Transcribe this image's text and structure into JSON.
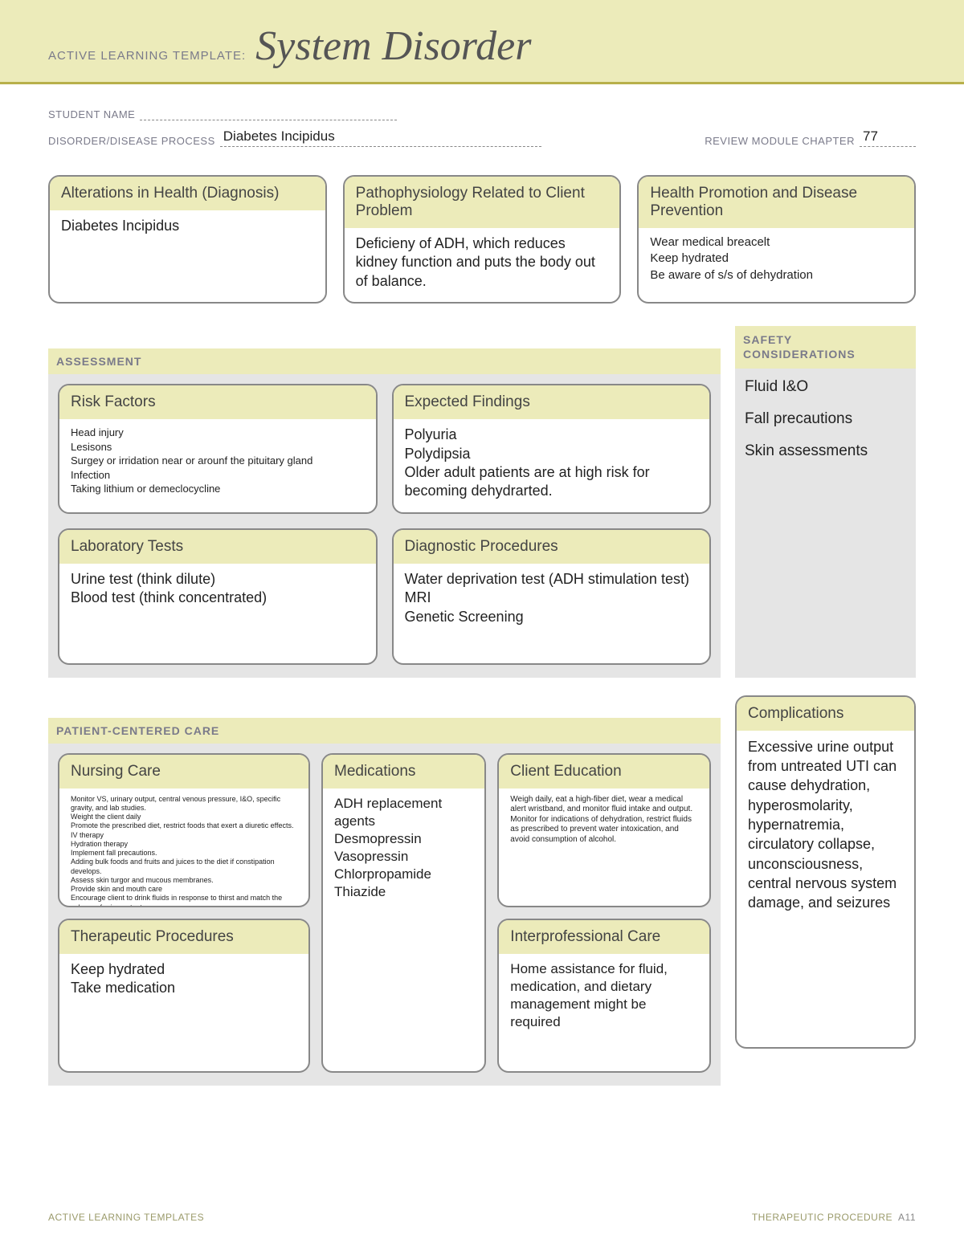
{
  "header": {
    "label": "ACTIVE LEARNING TEMPLATE:",
    "title": "System Disorder"
  },
  "form": {
    "student_name_label": "STUDENT NAME",
    "student_name_value": "",
    "disorder_label": "DISORDER/DISEASE PROCESS",
    "disorder_value": "Diabetes Incipidus",
    "chapter_label": "REVIEW MODULE CHAPTER",
    "chapter_value": "77"
  },
  "top_boxes": {
    "alterations": {
      "title": "Alterations in Health (Diagnosis)",
      "body": "Diabetes Incipidus"
    },
    "pathophysiology": {
      "title": "Pathophysiology Related to Client Problem",
      "body": "Deficieny of ADH, which reduces kidney function and puts the body out of balance."
    },
    "health_promotion": {
      "title": "Health Promotion and Disease Prevention",
      "body": "Wear medical breacelt\nKeep hydrated\nBe aware of s/s of dehydration"
    }
  },
  "assessment": {
    "section_label": "ASSESSMENT",
    "risk_factors": {
      "title": "Risk Factors",
      "body": "Head injury\nLesisons\nSurgey or irridation near or arounf the pituitary gland\nInfection\nTaking lithium or demeclocycline"
    },
    "expected_findings": {
      "title": "Expected Findings",
      "body": "Polyuria\nPolydipsia\nOlder adult patients are at high risk for becoming dehydrarted."
    },
    "lab_tests": {
      "title": "Laboratory Tests",
      "body": "Urine test (think dilute)\nBlood test (think concentrated)"
    },
    "diagnostic_procedures": {
      "title": "Diagnostic Procedures",
      "body": "Water deprivation test (ADH stimulation test)\nMRI\nGenetic Screening"
    }
  },
  "safety": {
    "label": "SAFETY CONSIDERATIONS",
    "items": [
      "Fluid I&O",
      "Fall precautions",
      "Skin assessments"
    ]
  },
  "pcc": {
    "section_label": "PATIENT-CENTERED CARE",
    "nursing_care": {
      "title": "Nursing Care",
      "body": "Monitor VS, urinary output, central venous pressure, I&O, specific gravity, and lab studies.\nWeight the client daily\nPromote the prescribed diet, restrict foods that exert a diuretic effects.\nIV therapy\nHydration therapy\nImplement fall precautions.\nAdding bulk foods and fruits and juices to the diet if constipation develops.\nAssess skin turgor and mucous membranes.\nProvide skin and mouth care\nEncourage client to drink fluids in response to thirst and match the volume of urine output"
    },
    "medications": {
      "title": "Medications",
      "body": "ADH replacement agents\nDesmopressin\nVasopressin\nChlorpropamide\nThiazide"
    },
    "client_education": {
      "title": "Client Education",
      "body": "Weigh daily, eat a high-fiber diet, wear a medical alert wristband, and monitor fluid intake and output. Monitor for indications of dehydration, restrict fluids as prescribed to prevent water intoxication, and avoid consumption of alcohol."
    },
    "therapeutic_procedures": {
      "title": "Therapeutic Procedures",
      "body": "Keep hydrated\nTake medication"
    },
    "interprofessional_care": {
      "title": "Interprofessional Care",
      "body": "Home assistance for fluid, medication, and dietary management might be required"
    }
  },
  "complications": {
    "title": "Complications",
    "body": "Excessive urine output from untreated UTI can cause dehydration, hyperosmolarity, hypernatremia, circulatory collapse, unconsciousness, central nervous system damage, and seizures"
  },
  "footer": {
    "left": "ACTIVE LEARNING TEMPLATES",
    "right_label": "THERAPEUTIC PROCEDURE",
    "right_page": "A11"
  },
  "colors": {
    "band": "#ecebba",
    "section_bg": "#e5e5e5",
    "accent_text": "#7a7a8a",
    "border": "#888888",
    "underline": "#b8b04a"
  }
}
